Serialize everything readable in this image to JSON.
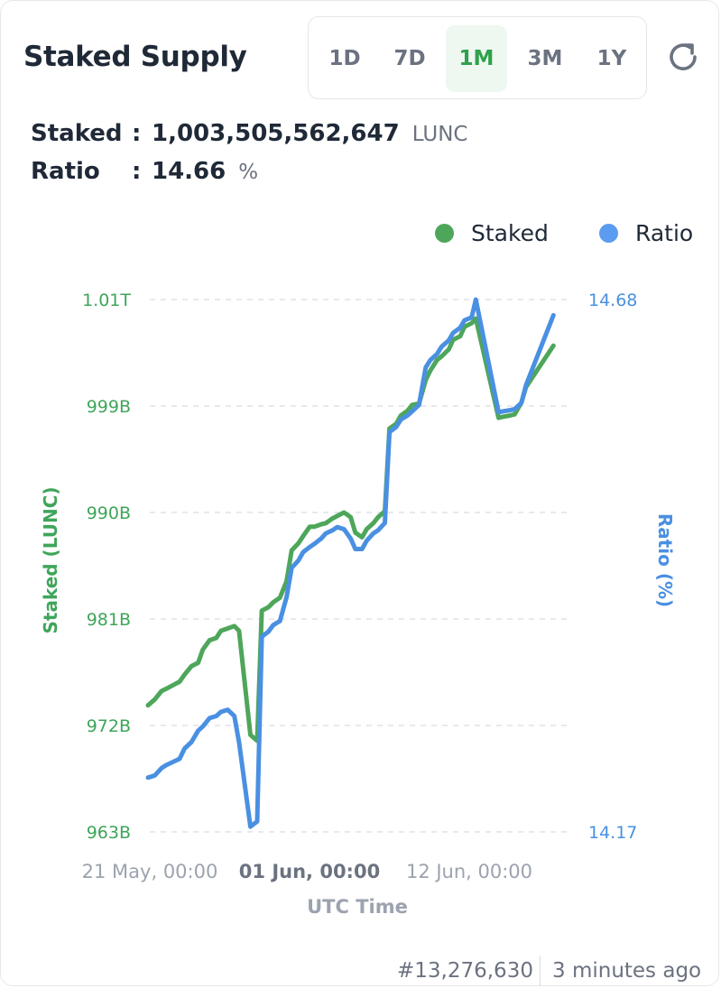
{
  "header": {
    "title": "Staked Supply",
    "ranges": [
      "1D",
      "7D",
      "1M",
      "3M",
      "1Y"
    ],
    "active_range": "1M"
  },
  "stats": {
    "staked_label": "Staked",
    "staked_value": "1,003,505,562,647",
    "staked_unit": "LUNC",
    "ratio_label": "Ratio",
    "ratio_value": "14.66",
    "ratio_unit": "%",
    "colon": ":"
  },
  "legend": {
    "staked": "Staked",
    "ratio": "Ratio"
  },
  "colors": {
    "staked": "#4ea65b",
    "ratio": "#4a90e2",
    "active": "#2fa04b"
  },
  "footer": {
    "block": "#13,276,630",
    "updated": "3 minutes ago"
  },
  "chart_data": {
    "type": "line",
    "xlabel": "UTC Time",
    "x_ticks": [
      "21 May, 00:00",
      "01 Jun, 00:00",
      "12 Jun, 00:00"
    ],
    "left_axis": {
      "label": "Staked (LUNC)",
      "ticks": [
        "1.01T",
        "999B",
        "990B",
        "981B",
        "972B",
        "963B"
      ],
      "range": [
        963,
        1008
      ]
    },
    "right_axis": {
      "label": "Ratio (%)",
      "ticks": [
        "14.68",
        "14.17"
      ],
      "range": [
        14.17,
        14.68
      ]
    },
    "grid": true,
    "legend_position": "top-right",
    "series": [
      {
        "name": "Staked",
        "axis": "left",
        "unit": "B LUNC",
        "values": [
          973.7,
          974.2,
          974.9,
          975.1,
          975.4,
          975.7,
          976.3,
          977.0,
          977.3,
          978.4,
          979.2,
          979.4,
          980.0,
          980.2,
          980.4,
          980.0,
          971.2,
          970.7,
          981.7,
          982.0,
          982.4,
          982.8,
          984.2,
          986.8,
          987.4,
          988.0,
          988.8,
          988.8,
          989.0,
          989.1,
          989.5,
          989.7,
          990.0,
          989.6,
          988.3,
          987.9,
          988.6,
          989.1,
          989.6,
          990.1,
          997.1,
          997.5,
          998.2,
          998.6,
          999.1,
          999.2,
          1001.2,
          1002.0,
          1002.9,
          1003.2,
          1003.8,
          1004.6,
          1004.9,
          1005.7,
          1006.0,
          1006.4,
          998.0,
          998.1,
          998.2,
          998.3,
          999.3,
          1000.6,
          1004.1
        ],
        "_x_fraction": "normalized time 0..1 per point",
        "x": [
          0.0,
          0.016,
          0.032,
          0.043,
          0.059,
          0.075,
          0.087,
          0.103,
          0.119,
          0.13,
          0.146,
          0.162,
          0.173,
          0.189,
          0.205,
          0.216,
          0.243,
          0.259,
          0.27,
          0.286,
          0.297,
          0.313,
          0.329,
          0.341,
          0.357,
          0.368,
          0.384,
          0.395,
          0.411,
          0.422,
          0.438,
          0.449,
          0.465,
          0.481,
          0.492,
          0.508,
          0.519,
          0.535,
          0.546,
          0.562,
          0.573,
          0.589,
          0.6,
          0.616,
          0.627,
          0.643,
          0.659,
          0.67,
          0.686,
          0.697,
          0.714,
          0.724,
          0.741,
          0.751,
          0.768,
          0.778,
          0.832,
          0.843,
          0.859,
          0.87,
          0.886,
          0.897,
          0.962
        ]
      },
      {
        "name": "Ratio",
        "axis": "right",
        "unit": "%",
        "values": [
          14.222,
          14.224,
          14.231,
          14.234,
          14.237,
          14.24,
          14.25,
          14.256,
          14.267,
          14.271,
          14.279,
          14.281,
          14.285,
          14.287,
          14.281,
          14.256,
          14.175,
          14.18,
          14.357,
          14.362,
          14.368,
          14.372,
          14.395,
          14.423,
          14.43,
          14.438,
          14.443,
          14.446,
          14.451,
          14.456,
          14.459,
          14.462,
          14.46,
          14.451,
          14.441,
          14.441,
          14.449,
          14.456,
          14.459,
          14.466,
          14.553,
          14.558,
          14.565,
          14.569,
          14.573,
          14.579,
          14.615,
          14.622,
          14.628,
          14.635,
          14.641,
          14.648,
          14.653,
          14.66,
          14.663,
          14.68,
          14.572,
          14.573,
          14.574,
          14.575,
          14.581,
          14.598,
          14.665
        ],
        "x": [
          0.0,
          0.016,
          0.032,
          0.043,
          0.059,
          0.075,
          0.087,
          0.103,
          0.119,
          0.13,
          0.146,
          0.162,
          0.173,
          0.189,
          0.205,
          0.216,
          0.243,
          0.259,
          0.27,
          0.286,
          0.297,
          0.313,
          0.329,
          0.341,
          0.357,
          0.368,
          0.384,
          0.395,
          0.411,
          0.422,
          0.438,
          0.449,
          0.465,
          0.481,
          0.492,
          0.508,
          0.519,
          0.535,
          0.546,
          0.562,
          0.573,
          0.589,
          0.6,
          0.616,
          0.627,
          0.643,
          0.659,
          0.67,
          0.686,
          0.697,
          0.714,
          0.724,
          0.741,
          0.751,
          0.768,
          0.778,
          0.832,
          0.843,
          0.859,
          0.87,
          0.886,
          0.897,
          0.962
        ]
      }
    ]
  }
}
